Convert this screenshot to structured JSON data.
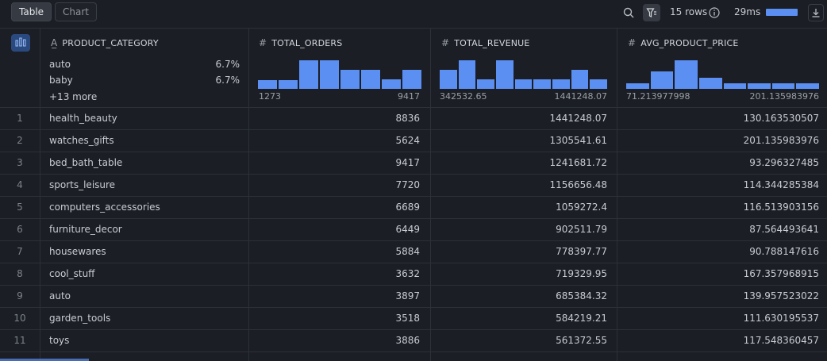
{
  "toolbar": {
    "tabs": [
      {
        "label": "Table",
        "active": true
      },
      {
        "label": "Chart",
        "active": false
      }
    ],
    "search_icon": "search-icon",
    "filter_icon": "filter-icon",
    "row_count": "15 rows",
    "info_icon": "info-icon",
    "query_time": "29ms",
    "query_time_bar_fill": 1.0,
    "download_icon": "download-icon"
  },
  "columns": [
    {
      "name": "PRODUCT_CATEGORY",
      "type": "text",
      "type_icon": "text-type-icon",
      "top_values": [
        {
          "label": "auto",
          "pct": "6.7%"
        },
        {
          "label": "baby",
          "pct": "6.7%"
        }
      ],
      "more": "+13 more"
    },
    {
      "name": "TOTAL_ORDERS",
      "type": "number",
      "type_icon": "hash-icon",
      "histogram": [
        0.3,
        0.3,
        1.0,
        1.0,
        0.68,
        0.68,
        0.33,
        0.66
      ],
      "min": "1273",
      "max": "9417"
    },
    {
      "name": "TOTAL_REVENUE",
      "type": "number",
      "type_icon": "hash-icon",
      "histogram": [
        0.66,
        1.0,
        0.33,
        1.0,
        0.33,
        0.33,
        0.33,
        0.66,
        0.33
      ],
      "min": "342532.65",
      "max": "1441248.07"
    },
    {
      "name": "AVG_PRODUCT_PRICE",
      "type": "number",
      "type_icon": "hash-icon",
      "histogram": [
        0.2,
        0.6,
        1.0,
        0.4,
        0.2,
        0.2,
        0.2,
        0.2
      ],
      "min": "71.213977998",
      "max": "201.135983976"
    }
  ],
  "rows": [
    [
      "1",
      "health_beauty",
      "8836",
      "1441248.07",
      "130.163530507"
    ],
    [
      "2",
      "watches_gifts",
      "5624",
      "1305541.61",
      "201.135983976"
    ],
    [
      "3",
      "bed_bath_table",
      "9417",
      "1241681.72",
      "93.296327485"
    ],
    [
      "4",
      "sports_leisure",
      "7720",
      "1156656.48",
      "114.344285384"
    ],
    [
      "5",
      "computers_accessories",
      "6689",
      "1059272.4",
      "116.513903156"
    ],
    [
      "6",
      "furniture_decor",
      "6449",
      "902511.79",
      "87.564493641"
    ],
    [
      "7",
      "housewares",
      "5884",
      "778397.77",
      "90.788147616"
    ],
    [
      "8",
      "cool_stuff",
      "3632",
      "719329.95",
      "167.357968915"
    ],
    [
      "9",
      "auto",
      "3897",
      "685384.32",
      "139.957523022"
    ],
    [
      "10",
      "garden_tools",
      "3518",
      "584219.21",
      "111.630195537"
    ],
    [
      "11",
      "toys",
      "3886",
      "561372.55",
      "117.548360457"
    ]
  ],
  "colors": {
    "accent": "#5b8ff2",
    "background": "#1b1e24",
    "grid_line": "#2c3038"
  }
}
